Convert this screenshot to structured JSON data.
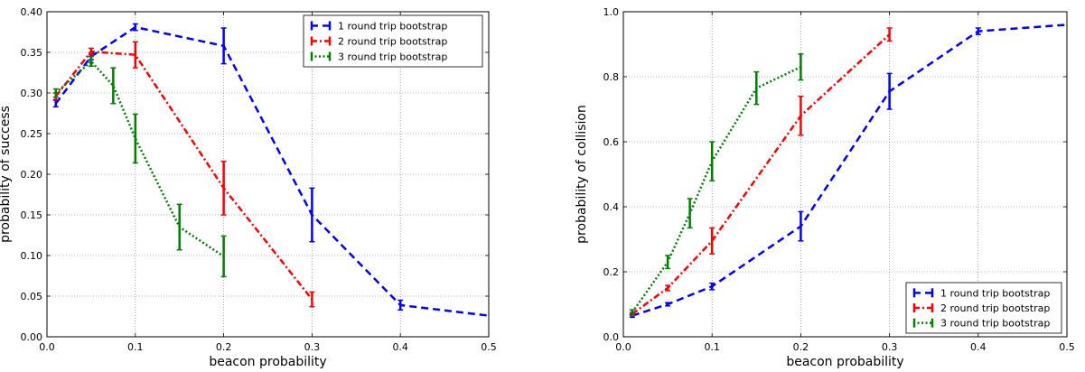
{
  "chart_data": [
    {
      "type": "line",
      "xlabel": "beacon probability",
      "ylabel": "probability of success",
      "xlim": [
        0,
        0.5
      ],
      "ylim": [
        0,
        0.4
      ],
      "xticks": [
        "0.0",
        "0.1",
        "0.2",
        "0.3",
        "0.4",
        "0.5"
      ],
      "yticks": [
        "0.00",
        "0.05",
        "0.10",
        "0.15",
        "0.20",
        "0.25",
        "0.30",
        "0.35",
        "0.40"
      ],
      "grid": true,
      "legend_position": "top-right",
      "series": [
        {
          "name": "1 round trip bootstrap",
          "color": "#0000ff",
          "style": "dashed",
          "x": [
            0.01,
            0.05,
            0.1,
            0.2,
            0.3,
            0.4,
            0.5
          ],
          "y": [
            0.287,
            0.345,
            0.381,
            0.358,
            0.15,
            0.039,
            0.026
          ],
          "err": [
            0.004,
            0.004,
            0.004,
            0.022,
            0.033,
            0.006,
            0.0
          ]
        },
        {
          "name": "2 round trip bootstrap",
          "color": "#ff0000",
          "style": "dashdot",
          "x": [
            0.01,
            0.05,
            0.1,
            0.2,
            0.3
          ],
          "y": [
            0.296,
            0.351,
            0.347,
            0.183,
            0.046
          ],
          "err": [
            0.004,
            0.004,
            0.016,
            0.033,
            0.009
          ]
        },
        {
          "name": "3 round trip bootstrap",
          "color": "#008000",
          "style": "dotted",
          "x": [
            0.01,
            0.05,
            0.075,
            0.1,
            0.15,
            0.2
          ],
          "y": [
            0.3,
            0.339,
            0.309,
            0.244,
            0.135,
            0.099
          ],
          "err": [
            0.005,
            0.006,
            0.022,
            0.03,
            0.028,
            0.025
          ]
        }
      ]
    },
    {
      "type": "line",
      "xlabel": "beacon probability",
      "ylabel": "probability of collision",
      "xlim": [
        0,
        0.5
      ],
      "ylim": [
        0,
        1.0
      ],
      "xticks": [
        "0.0",
        "0.1",
        "0.2",
        "0.3",
        "0.4",
        "0.5"
      ],
      "yticks": [
        "0.0",
        "0.2",
        "0.4",
        "0.6",
        "0.8",
        "1.0"
      ],
      "grid": true,
      "legend_position": "bottom-right",
      "series": [
        {
          "name": "1 round trip bootstrap",
          "color": "#0000ff",
          "style": "dashed",
          "x": [
            0.01,
            0.05,
            0.1,
            0.2,
            0.3,
            0.4,
            0.5
          ],
          "y": [
            0.065,
            0.1,
            0.155,
            0.34,
            0.755,
            0.94,
            0.96
          ],
          "err": [
            0.005,
            0.005,
            0.01,
            0.045,
            0.055,
            0.01,
            0.0
          ]
        },
        {
          "name": "2 round trip bootstrap",
          "color": "#ff0000",
          "style": "dashdot",
          "x": [
            0.01,
            0.05,
            0.1,
            0.2,
            0.3
          ],
          "y": [
            0.07,
            0.15,
            0.295,
            0.68,
            0.93
          ],
          "err": [
            0.005,
            0.008,
            0.04,
            0.06,
            0.02
          ]
        },
        {
          "name": "3 round trip bootstrap",
          "color": "#008000",
          "style": "dotted",
          "x": [
            0.01,
            0.05,
            0.075,
            0.1,
            0.15,
            0.2
          ],
          "y": [
            0.075,
            0.23,
            0.38,
            0.54,
            0.765,
            0.83
          ],
          "err": [
            0.008,
            0.02,
            0.045,
            0.06,
            0.05,
            0.04
          ]
        }
      ]
    }
  ]
}
